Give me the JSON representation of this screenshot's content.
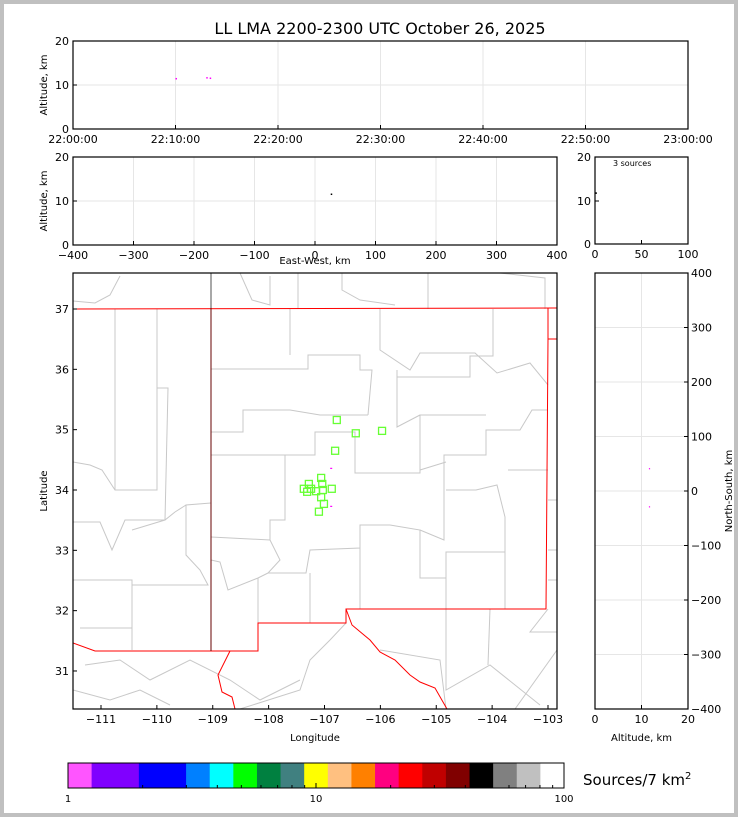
{
  "chart_data": [
    {
      "type": "scatter",
      "panel": "altitude-vs-time",
      "title": "LL LMA 2200-2300 UTC October 26, 2025",
      "xlabel": "",
      "ylabel": "Altitude, km",
      "x_ticks": [
        "22:00:00",
        "22:10:00",
        "22:20:00",
        "22:30:00",
        "22:40:00",
        "22:50:00",
        "23:00:00"
      ],
      "y_ticks": [
        "0",
        "10",
        "20"
      ],
      "xlim": [
        "22:00:00",
        "23:00:00"
      ],
      "ylim": [
        0,
        20
      ],
      "grid": true,
      "points": [
        {
          "time": "22:10:00",
          "alt_km": 11.6
        },
        {
          "time": "22:13:00",
          "alt_km": 11.8
        },
        {
          "time": "22:13:20",
          "alt_km": 11.7
        }
      ]
    },
    {
      "type": "scatter",
      "panel": "altitude-vs-east-west",
      "xlabel": "East-West, km",
      "ylabel": "Altitude, km",
      "x_ticks": [
        "−400",
        "−300",
        "−200",
        "−100",
        "0",
        "100",
        "200",
        "300",
        "400"
      ],
      "y_ticks": [
        "0",
        "10",
        "20"
      ],
      "xlim": [
        -400,
        400
      ],
      "ylim": [
        0,
        20
      ],
      "grid": true,
      "points": [
        {
          "x_km": 26,
          "alt_km": 11.7
        }
      ]
    },
    {
      "type": "histogram",
      "panel": "altitude-histogram",
      "annotation": "3 sources",
      "x_ticks": [
        "0",
        "50",
        "100"
      ],
      "y_ticks": [
        "0",
        "10",
        "20"
      ],
      "xlim": [
        0,
        100
      ],
      "ylim": [
        0,
        20
      ],
      "points": [
        {
          "count": 1,
          "alt_km": 11.7
        }
      ]
    },
    {
      "type": "scatter",
      "panel": "plan-view-map",
      "xlabel": "Longitude",
      "ylabel": "Latitude",
      "x_ticks": [
        "−111",
        "−110",
        "−109",
        "−108",
        "−107",
        "−106",
        "−105",
        "−104",
        "−103"
      ],
      "y_ticks": [
        "31",
        "32",
        "33",
        "34",
        "35",
        "36",
        "37"
      ],
      "xlim": [
        -111.5,
        -102.85
      ],
      "ylim": [
        30.37,
        37.6
      ],
      "sources": [
        {
          "lon": -106.88,
          "lat": 34.36
        },
        {
          "lon": -106.88,
          "lat": 33.73
        }
      ],
      "stations": [
        {
          "lon": -106.78,
          "lat": 35.16
        },
        {
          "lon": -106.44,
          "lat": 34.94
        },
        {
          "lon": -105.97,
          "lat": 34.98
        },
        {
          "lon": -106.81,
          "lat": 34.65
        },
        {
          "lon": -107.06,
          "lat": 34.2
        },
        {
          "lon": -107.28,
          "lat": 34.1
        },
        {
          "lon": -107.04,
          "lat": 34.1
        },
        {
          "lon": -107.37,
          "lat": 34.02
        },
        {
          "lon": -107.31,
          "lat": 33.97
        },
        {
          "lon": -107.24,
          "lat": 34.02
        },
        {
          "lon": -107.15,
          "lat": 33.98
        },
        {
          "lon": -107.03,
          "lat": 34.0
        },
        {
          "lon": -106.87,
          "lat": 34.02
        },
        {
          "lon": -107.06,
          "lat": 33.88
        },
        {
          "lon": -107.01,
          "lat": 33.77
        },
        {
          "lon": -107.1,
          "lat": 33.64
        }
      ],
      "station_color": "#66ff33",
      "state_border_color": "#ff0000",
      "county_border_color": "#c8c8c8"
    },
    {
      "type": "scatter",
      "panel": "north-south-vs-altitude",
      "xlabel": "Altitude, km",
      "ylabel": "North-South, km",
      "x_ticks": [
        "0",
        "10",
        "20"
      ],
      "y_ticks": [
        "−400",
        "−300",
        "−200",
        "−100",
        "0",
        "100",
        "200",
        "300",
        "400"
      ],
      "xlim": [
        0,
        20
      ],
      "ylim": [
        -400,
        400
      ],
      "grid": true,
      "points": [
        {
          "alt_km": 11.7,
          "y_km": 42
        },
        {
          "alt_km": 11.7,
          "y_km": -28
        }
      ]
    }
  ],
  "colorbar": {
    "label": "Sources/7 km",
    "label_sup": "2",
    "scale": "log",
    "tick_labels": [
      "1",
      "10",
      "100"
    ],
    "colors": [
      "#ff55ff",
      "#8000ff",
      "#8000ff",
      "#0000ff",
      "#0000ff",
      "#0080ff",
      "#00ffff",
      "#00ff00",
      "#008040",
      "#408080",
      "#ffff00",
      "#ffc080",
      "#ff8000",
      "#ff0080",
      "#ff0000",
      "#c00000",
      "#800000",
      "#000000",
      "#808080",
      "#c0c0c0",
      "#ffffff"
    ]
  },
  "source_color": "#ff00ff"
}
